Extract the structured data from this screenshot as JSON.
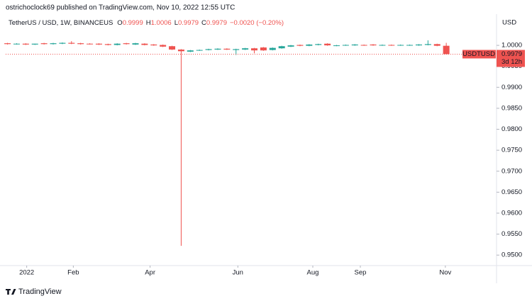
{
  "header": {
    "publisher": "ostrichoclock69 published on TradingView.com, Nov 10, 2022 12:55 UTC",
    "symbol": "TetherUS / USD, 1W, BINANCEUS",
    "ohlc": [
      {
        "label": "O",
        "value": "0.9999"
      },
      {
        "label": "H",
        "value": "1.0006"
      },
      {
        "label": "L",
        "value": "0.9979"
      },
      {
        "label": "C",
        "value": "0.9979"
      }
    ],
    "change": "−0.0020 (−0.20%)",
    "currency": "USD"
  },
  "price_tag": {
    "ticker": "USDTUSD",
    "price": "0.9979",
    "countdown": "3d 12h"
  },
  "footer": {
    "brand": "TradingView"
  },
  "chart_data": {
    "type": "candlestick",
    "up_color": "#26a69a",
    "down_color": "#ef5350",
    "grid": false,
    "open": [
      1.0005,
      1.0003,
      1.0004,
      1.0002,
      1.0005,
      1.0003,
      1.0004,
      1.0006,
      1.0005,
      1.0004,
      1.0004,
      1.0003,
      1.0001,
      1.0005,
      1.0002,
      1.0004,
      1.0002,
      1.0001,
      0.9998,
      0.999,
      0.9985,
      0.9988,
      0.9989,
      0.999,
      0.9992,
      0.9989,
      0.999,
      0.9993,
      0.9995,
      0.9989,
      0.9993,
      0.9997,
      1.0001,
      0.9999,
      1.0001,
      1.0004,
      0.9999,
      1.0,
      1.0,
      1.0001,
      1.0002,
      1.0,
      1.0001,
      1.0,
      1.0,
      1.0,
      1.0001,
      1.0003,
      0.9999
    ],
    "high": [
      1.0006,
      1.0005,
      1.0005,
      1.0004,
      1.0006,
      1.0006,
      1.0007,
      1.001,
      1.0006,
      1.0005,
      1.0005,
      1.0004,
      1.0005,
      1.0006,
      1.0006,
      1.0005,
      1.0003,
      1.0002,
      0.9999,
      0.9991,
      0.9989,
      0.999,
      0.9992,
      0.9993,
      0.9993,
      0.9992,
      0.9994,
      0.9994,
      0.9996,
      0.9995,
      0.9999,
      1.0001,
      1.0002,
      1.0003,
      1.0004,
      1.0005,
      1.0001,
      1.0002,
      1.0003,
      1.0002,
      1.0003,
      1.0002,
      1.0002,
      1.0002,
      1.0002,
      1.0003,
      1.0012,
      1.0004,
      1.0006
    ],
    "low": [
      1.0002,
      1.0002,
      1.0001,
      1.0001,
      1.0002,
      1.0002,
      1.0003,
      1.0003,
      1.0002,
      1.0002,
      1.0001,
      1.0,
      1.0,
      1.0002,
      1.0001,
      1.0,
      0.9999,
      0.9996,
      0.9989,
      0.9522,
      0.9984,
      0.9987,
      0.9988,
      0.9989,
      0.9989,
      0.9977,
      0.9989,
      0.9981,
      0.9987,
      0.9988,
      0.9992,
      0.9996,
      0.9998,
      0.9998,
      1.0,
      0.9999,
      0.9998,
      0.9999,
      0.9999,
      0.9999,
      0.9999,
      0.9999,
      0.9999,
      0.9999,
      0.9999,
      0.9999,
      1.0,
      0.9998,
      0.9979
    ],
    "close": [
      1.0003,
      1.0004,
      1.0002,
      1.0004,
      1.0003,
      1.0005,
      1.0006,
      1.0004,
      1.0003,
      1.0003,
      1.0002,
      1.0001,
      1.0004,
      1.0003,
      1.0005,
      1.0001,
      1.0,
      0.9997,
      0.999,
      0.9986,
      0.9988,
      0.9989,
      0.9991,
      0.9992,
      0.999,
      0.9991,
      0.9993,
      0.9988,
      0.9988,
      0.9994,
      0.9998,
      1.0,
      0.9999,
      1.0002,
      1.0003,
      1.0,
      1.0,
      1.0001,
      1.0002,
      1.0,
      1.0,
      1.0001,
      1.0,
      1.0001,
      1.0001,
      1.0002,
      1.0003,
      0.9999,
      0.9979
    ],
    "ylim": [
      0.9475,
      1.0071
    ],
    "yticks": [
      {
        "value": 1.0,
        "label": "1.0000"
      },
      {
        "value": 0.995,
        "label": "0.9950"
      },
      {
        "value": 0.99,
        "label": "0.9900"
      },
      {
        "value": 0.985,
        "label": "0.9850"
      },
      {
        "value": 0.98,
        "label": "0.9800"
      },
      {
        "value": 0.975,
        "label": "0.9750"
      },
      {
        "value": 0.97,
        "label": "0.9700"
      },
      {
        "value": 0.965,
        "label": "0.9650"
      },
      {
        "value": 0.96,
        "label": "0.9600"
      },
      {
        "value": 0.955,
        "label": "0.9550"
      },
      {
        "value": 0.95,
        "label": "0.9500"
      }
    ],
    "xlim": [
      -0.2,
      53.5
    ],
    "xticks": [
      {
        "value": 2.1,
        "label": "2022"
      },
      {
        "value": 7.2,
        "label": "Feb"
      },
      {
        "value": 15.6,
        "label": "Apr"
      },
      {
        "value": 25.2,
        "label": "Jun"
      },
      {
        "value": 33.4,
        "label": "Aug"
      },
      {
        "value": 38.6,
        "label": "Sep"
      },
      {
        "value": 47.9,
        "label": "Nov"
      }
    ]
  }
}
